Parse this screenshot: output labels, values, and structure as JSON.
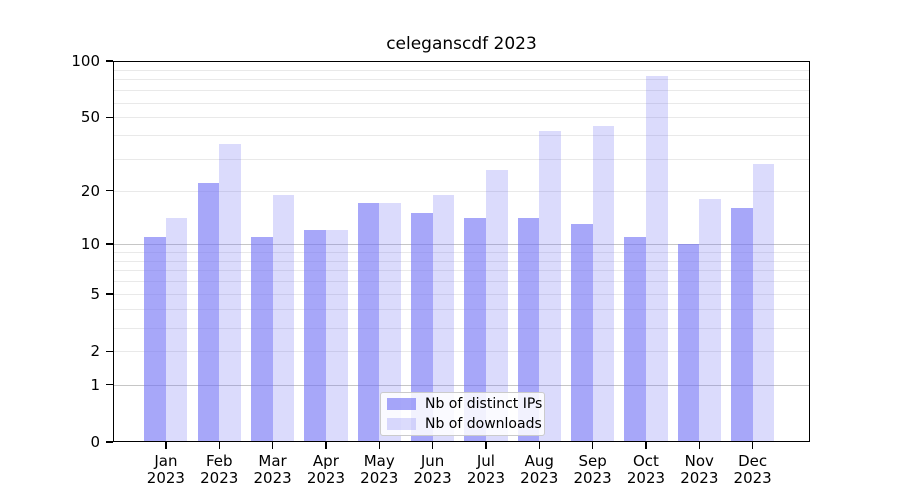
{
  "chart_data": {
    "type": "bar",
    "title": "celeganscdf 2023",
    "categories": [
      "Jan 2023",
      "Feb 2023",
      "Mar 2023",
      "Apr 2023",
      "May 2023",
      "Jun 2023",
      "Jul 2023",
      "Aug 2023",
      "Sep 2023",
      "Oct 2023",
      "Nov 2023",
      "Dec 2023"
    ],
    "x_tick_line1": [
      "Jan",
      "Feb",
      "Mar",
      "Apr",
      "May",
      "Jun",
      "Jul",
      "Aug",
      "Sep",
      "Oct",
      "Nov",
      "Dec"
    ],
    "x_tick_line2": "2023",
    "series": [
      {
        "name": "Nb of distinct IPs",
        "color": "rgba(113,113,245,0.62)",
        "values": [
          11,
          22,
          11,
          12,
          17,
          15,
          14,
          14,
          13,
          11,
          10,
          16
        ]
      },
      {
        "name": "Nb of downloads",
        "color": "rgba(113,113,245,0.25)",
        "values": [
          14,
          36,
          19,
          12,
          17,
          19,
          26,
          42,
          45,
          83,
          18,
          28
        ]
      }
    ],
    "yscale": "log1p",
    "ylim": [
      0,
      100
    ],
    "yticks": [
      100,
      50,
      20,
      10,
      5,
      2,
      1,
      0
    ],
    "grid_minor_values": [
      2,
      3,
      4,
      5,
      6,
      7,
      8,
      9,
      20,
      30,
      40,
      50,
      60,
      70,
      80,
      90
    ],
    "grid_major_values": [
      1,
      10
    ],
    "colors": {
      "grid_minor": "#e9e9e9",
      "grid_major": "#c6c6c6",
      "axis": "#000000"
    },
    "legend_position": "lower center",
    "grid": "horizontal only"
  }
}
